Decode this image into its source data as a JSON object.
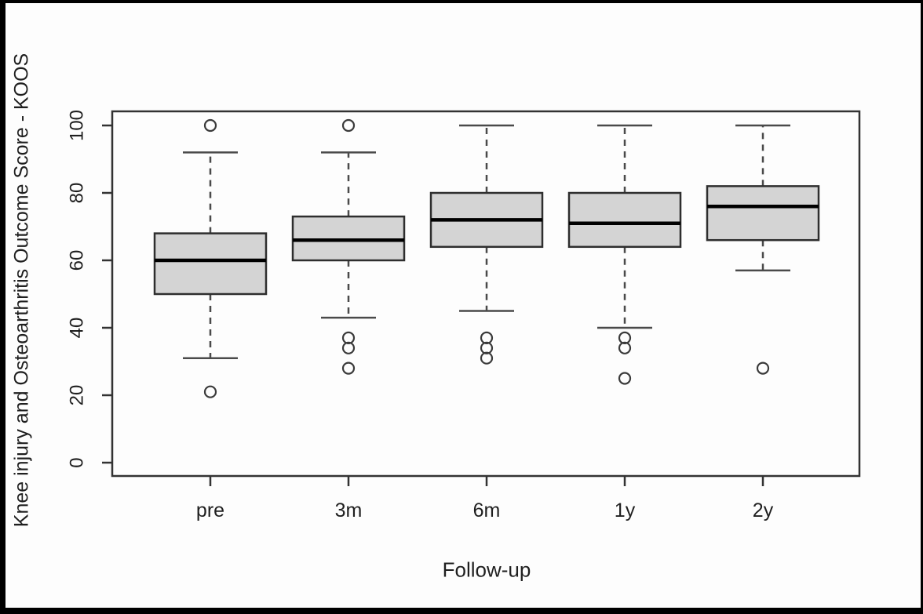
{
  "figure": {
    "background": "#fdfdfd",
    "border_color": "#000000"
  },
  "chart_data": {
    "type": "boxplot",
    "title": "",
    "xlabel": "Follow-up",
    "ylabel": "Knee injury and Osteoarthritis Outcome Score - KOOS",
    "ylim": [
      0,
      100
    ],
    "yticks": [
      0,
      20,
      40,
      60,
      80,
      100
    ],
    "grid": false,
    "legend": "none",
    "categories": [
      "pre",
      "3m",
      "6m",
      "1y",
      "2y"
    ],
    "series": [
      {
        "category": "pre",
        "whisker_low": 31,
        "q1": 50,
        "median": 60,
        "q3": 68,
        "whisker_high": 92,
        "outliers": [
          100,
          21
        ]
      },
      {
        "category": "3m",
        "whisker_low": 43,
        "q1": 60,
        "median": 66,
        "q3": 73,
        "whisker_high": 92,
        "outliers": [
          100,
          37,
          34,
          28
        ]
      },
      {
        "category": "6m",
        "whisker_low": 45,
        "q1": 64,
        "median": 72,
        "q3": 80,
        "whisker_high": 100,
        "outliers": [
          37,
          34,
          31
        ]
      },
      {
        "category": "1y",
        "whisker_low": 40,
        "q1": 64,
        "median": 71,
        "q3": 80,
        "whisker_high": 100,
        "outliers": [
          37,
          34,
          25
        ]
      },
      {
        "category": "2y",
        "whisker_low": 57,
        "q1": 66,
        "median": 76,
        "q3": 82,
        "whisker_high": 100,
        "outliers": [
          28
        ]
      }
    ],
    "colors": {
      "box_fill": "#d4d4d4",
      "box_border": "#2e2e2e",
      "median": "#000000",
      "whisker": "#4a4a4a",
      "outlier": "#3a3a3a",
      "frame": "#333333",
      "tick_text": "#1f1f1f"
    }
  }
}
